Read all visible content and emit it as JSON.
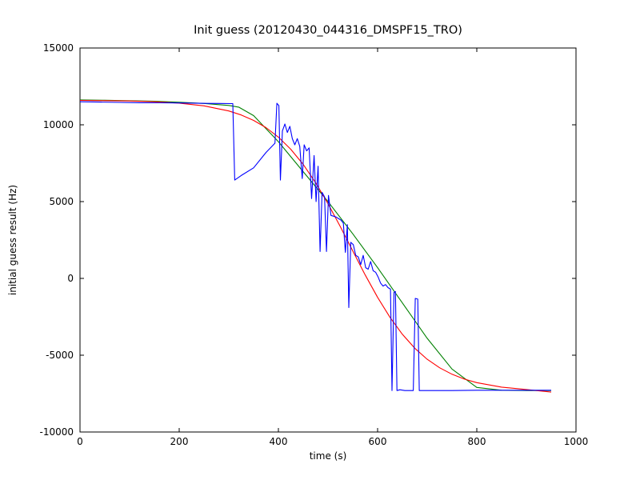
{
  "chart_data": {
    "type": "line",
    "title": "Init guess (20120430_044316_DMSPF15_TRO)",
    "xlabel": "time (s)",
    "ylabel": "initial guess result (Hz)",
    "xlim": [
      0,
      1000
    ],
    "ylim": [
      -10000,
      15000
    ],
    "xticks": [
      0,
      200,
      400,
      600,
      800,
      1000
    ],
    "yticks": [
      -10000,
      -5000,
      0,
      5000,
      10000,
      15000
    ],
    "grid": false,
    "legend": "none",
    "axis_color": "#000000",
    "background_color": "#ffffff",
    "series": [
      {
        "name": "series-green-smoothed",
        "color": "#008000",
        "points": [
          [
            0,
            11620
          ],
          [
            50,
            11600
          ],
          [
            100,
            11570
          ],
          [
            150,
            11530
          ],
          [
            200,
            11470
          ],
          [
            250,
            11390
          ],
          [
            300,
            11260
          ],
          [
            320,
            11150
          ],
          [
            350,
            10600
          ],
          [
            400,
            8900
          ],
          [
            450,
            6950
          ],
          [
            500,
            5000
          ],
          [
            550,
            2900
          ],
          [
            600,
            700
          ],
          [
            650,
            -1600
          ],
          [
            700,
            -3900
          ],
          [
            750,
            -5900
          ],
          [
            800,
            -7100
          ],
          [
            850,
            -7280
          ],
          [
            900,
            -7300
          ],
          [
            950,
            -7300
          ]
        ]
      },
      {
        "name": "series-red-fit",
        "color": "#ff0000",
        "points": [
          [
            0,
            11587
          ],
          [
            50,
            11574
          ],
          [
            100,
            11550
          ],
          [
            150,
            11502
          ],
          [
            200,
            11410
          ],
          [
            250,
            11235
          ],
          [
            300,
            10903
          ],
          [
            325,
            10639
          ],
          [
            350,
            10286
          ],
          [
            375,
            9816
          ],
          [
            400,
            9198
          ],
          [
            425,
            8408
          ],
          [
            450,
            7424
          ],
          [
            475,
            6235
          ],
          [
            500,
            4867
          ],
          [
            525,
            3357
          ],
          [
            550,
            1784
          ],
          [
            575,
            224
          ],
          [
            600,
            -1236
          ],
          [
            625,
            -2537
          ],
          [
            650,
            -3642
          ],
          [
            675,
            -4547
          ],
          [
            700,
            -5265
          ],
          [
            725,
            -5820
          ],
          [
            750,
            -6240
          ],
          [
            775,
            -6555
          ],
          [
            800,
            -6786
          ],
          [
            850,
            -7080
          ],
          [
            900,
            -7234
          ],
          [
            950,
            -7400
          ]
        ]
      },
      {
        "name": "series-blue-raw",
        "color": "#0000ff",
        "points": [
          [
            0,
            11500
          ],
          [
            40,
            11480
          ],
          [
            80,
            11460
          ],
          [
            120,
            11440
          ],
          [
            160,
            11430
          ],
          [
            200,
            11420
          ],
          [
            240,
            11400
          ],
          [
            280,
            11390
          ],
          [
            308,
            11380
          ],
          [
            312,
            6400
          ],
          [
            325,
            6700
          ],
          [
            350,
            7200
          ],
          [
            375,
            8200
          ],
          [
            393,
            8800
          ],
          [
            397,
            11400
          ],
          [
            401,
            11250
          ],
          [
            404,
            6400
          ],
          [
            408,
            9600
          ],
          [
            413,
            10050
          ],
          [
            418,
            9500
          ],
          [
            423,
            9900
          ],
          [
            428,
            9100
          ],
          [
            433,
            8700
          ],
          [
            438,
            9100
          ],
          [
            443,
            8600
          ],
          [
            448,
            6500
          ],
          [
            452,
            8700
          ],
          [
            457,
            8300
          ],
          [
            462,
            8500
          ],
          [
            467,
            5200
          ],
          [
            472,
            8000
          ],
          [
            476,
            5000
          ],
          [
            480,
            7300
          ],
          [
            484,
            1750
          ],
          [
            488,
            5600
          ],
          [
            493,
            5300
          ],
          [
            497,
            1750
          ],
          [
            501,
            5400
          ],
          [
            506,
            4100
          ],
          [
            511,
            4050
          ],
          [
            516,
            4000
          ],
          [
            521,
            3900
          ],
          [
            526,
            3800
          ],
          [
            531,
            3600
          ],
          [
            535,
            1700
          ],
          [
            539,
            3500
          ],
          [
            542,
            -1900
          ],
          [
            546,
            2350
          ],
          [
            551,
            2200
          ],
          [
            556,
            1500
          ],
          [
            561,
            1400
          ],
          [
            566,
            900
          ],
          [
            571,
            1500
          ],
          [
            576,
            700
          ],
          [
            581,
            600
          ],
          [
            586,
            1100
          ],
          [
            591,
            500
          ],
          [
            596,
            400
          ],
          [
            601,
            100
          ],
          [
            606,
            -300
          ],
          [
            611,
            -500
          ],
          [
            616,
            -400
          ],
          [
            621,
            -600
          ],
          [
            626,
            -700
          ],
          [
            629,
            -7300
          ],
          [
            633,
            -900
          ],
          [
            636,
            -850
          ],
          [
            639,
            -7300
          ],
          [
            645,
            -7250
          ],
          [
            655,
            -7300
          ],
          [
            665,
            -7300
          ],
          [
            672,
            -7300
          ],
          [
            676,
            -1300
          ],
          [
            681,
            -1350
          ],
          [
            684,
            -7300
          ],
          [
            700,
            -7300
          ],
          [
            750,
            -7300
          ],
          [
            800,
            -7280
          ],
          [
            850,
            -7280
          ],
          [
            900,
            -7280
          ],
          [
            950,
            -7280
          ]
        ]
      }
    ]
  }
}
